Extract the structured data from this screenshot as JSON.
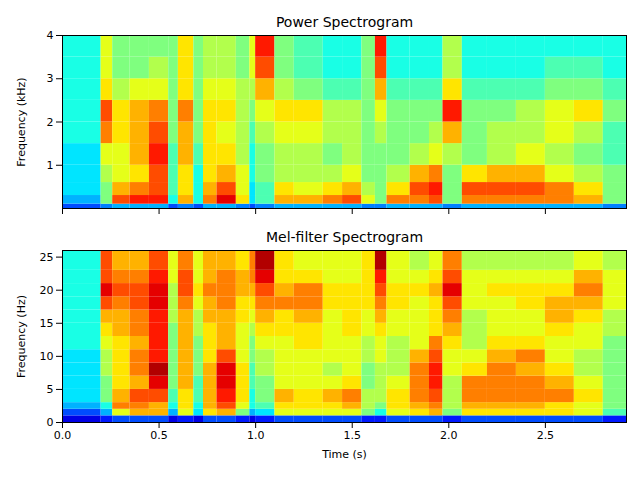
{
  "chart_data": [
    {
      "type": "heatmap",
      "title": "Power Spectrogram",
      "ylabel": "Frequency (kHz)",
      "color": "jet",
      "tick_labels": "y",
      "xlim": [
        0,
        2.92
      ],
      "ylim": [
        0,
        4
      ],
      "xticks": [
        0,
        0.5,
        1,
        1.5,
        2,
        2.5
      ],
      "yticks": [
        1,
        2,
        3,
        4
      ],
      "zlim": [
        0,
        10
      ],
      "xbins": [
        0,
        0.2,
        0.26,
        0.35,
        0.45,
        0.55,
        0.6,
        0.68,
        0.73,
        0.8,
        0.9,
        0.97,
        1.0,
        1.1,
        1.2,
        1.35,
        1.45,
        1.55,
        1.62,
        1.68,
        1.8,
        1.9,
        1.97,
        2.07,
        2.2,
        2.35,
        2.5,
        2.65,
        2.8,
        2.92
      ],
      "ybins": [
        0,
        0.1,
        0.3,
        0.6,
        1,
        1.5,
        2,
        2.5,
        3,
        3.5,
        4
      ],
      "values": [
        [
          2,
          3,
          3.5,
          3.5,
          3.5,
          4,
          4,
          4,
          4,
          4
        ],
        [
          2.5,
          5,
          5,
          5.5,
          6,
          7.5,
          8,
          6.5,
          6,
          6
        ],
        [
          3,
          8,
          7,
          6,
          6,
          6.5,
          6.5,
          5.5,
          5,
          5
        ],
        [
          3,
          8.5,
          7.5,
          6.5,
          7,
          7,
          7,
          6,
          5,
          5
        ],
        [
          3,
          8.5,
          8,
          8,
          8.5,
          8,
          7.5,
          6,
          5.5,
          5
        ],
        [
          2,
          4,
          4.5,
          4.5,
          4.5,
          5,
          5,
          5,
          5,
          5
        ],
        [
          2.5,
          7,
          6.5,
          6.5,
          7,
          7,
          7.5,
          6.5,
          6.5,
          6.5
        ],
        [
          2,
          4,
          4,
          4,
          4.5,
          5,
          5,
          5,
          5,
          5
        ],
        [
          3,
          7.5,
          7,
          6.5,
          6.5,
          6.5,
          6.5,
          6,
          5.5,
          5.5
        ],
        [
          3,
          9,
          8,
          7,
          6.5,
          6,
          6.5,
          6,
          5.5,
          5.5
        ],
        [
          2.5,
          6.5,
          6,
          6,
          5.5,
          5.5,
          5.5,
          5.5,
          5,
          5
        ],
        [
          2,
          3.5,
          3.5,
          4,
          4,
          4.5,
          5,
          5.5,
          6,
          6
        ],
        [
          2.5,
          4.5,
          4.5,
          5,
          5,
          5.5,
          6,
          7,
          8,
          8.5
        ],
        [
          3,
          7,
          6.5,
          5.5,
          5.5,
          6,
          6.5,
          5.5,
          5,
          5
        ],
        [
          3,
          7,
          6,
          5.5,
          5.5,
          6,
          6.5,
          5,
          4.5,
          4.5
        ],
        [
          3,
          7.5,
          6.5,
          5.5,
          5,
          5.5,
          5.5,
          4.5,
          4,
          4
        ],
        [
          3,
          8,
          7,
          6,
          5.5,
          5.5,
          5.5,
          4.5,
          4,
          4
        ],
        [
          2.5,
          6,
          5.5,
          5,
          5,
          5,
          5,
          5,
          5,
          5
        ],
        [
          2.5,
          5,
          5,
          5,
          5,
          5.5,
          6,
          7,
          8,
          8.5
        ],
        [
          3,
          7.5,
          6.5,
          5.5,
          5,
          5,
          5,
          4.5,
          4,
          4
        ],
        [
          3,
          7.5,
          8,
          7,
          5.5,
          5,
          5,
          4.5,
          4,
          4
        ],
        [
          3,
          8,
          8.5,
          7.5,
          6,
          5.5,
          5,
          4.5,
          4,
          4
        ],
        [
          2.5,
          5,
          5,
          5,
          5.5,
          7,
          8.5,
          6.5,
          5.5,
          5.5
        ],
        [
          3,
          7.5,
          8,
          6.5,
          5,
          5,
          5,
          4.5,
          4,
          4
        ],
        [
          3,
          7.5,
          8,
          7,
          5.5,
          5.5,
          5,
          4.5,
          4,
          4
        ],
        [
          3,
          7.5,
          8,
          7,
          6,
          5.5,
          5.5,
          4.5,
          4,
          4
        ],
        [
          3,
          7.5,
          7.5,
          6,
          5.5,
          6,
          6,
          5,
          4.5,
          4
        ],
        [
          3,
          7,
          6.5,
          5.5,
          5,
          5.5,
          6.5,
          5,
          4.5,
          4
        ],
        [
          2.5,
          5,
          5,
          5,
          4.5,
          4.5,
          5,
          4.5,
          4,
          4
        ]
      ]
    },
    {
      "type": "heatmap",
      "title": "Mel-filter Spectrogram",
      "xlabel": "Time (s)",
      "ylabel": "Frequency (Hz)",
      "color": "jet",
      "xlim": [
        0,
        2.92
      ],
      "ylim": [
        0,
        26
      ],
      "xticks": [
        {
          "value": 0,
          "label": "0.0"
        },
        0.5,
        {
          "value": 1,
          "label": "1.0"
        },
        1.5,
        {
          "value": 2,
          "label": "2.0"
        },
        2.5
      ],
      "yticks": [
        0,
        5,
        10,
        15,
        20,
        25
      ],
      "zlim": [
        0,
        10
      ],
      "xbins": [
        0,
        0.2,
        0.26,
        0.35,
        0.45,
        0.55,
        0.6,
        0.68,
        0.73,
        0.8,
        0.9,
        0.97,
        1.0,
        1.1,
        1.2,
        1.35,
        1.45,
        1.55,
        1.62,
        1.68,
        1.8,
        1.9,
        1.97,
        2.07,
        2.2,
        2.35,
        2.5,
        2.65,
        2.8,
        2.92
      ],
      "ybins": [
        0,
        1,
        2,
        3,
        5,
        7,
        9,
        11,
        13,
        15,
        17,
        19,
        21,
        23,
        26
      ],
      "values": [
        [
          1,
          2,
          3,
          3.5,
          3.5,
          3.5,
          3.5,
          4,
          4,
          4,
          4,
          4,
          4,
          4
        ],
        [
          1.5,
          3,
          4,
          5,
          5,
          5.5,
          5.5,
          6,
          6.5,
          7,
          8,
          9,
          8,
          8
        ],
        [
          2,
          6,
          7.5,
          7,
          6.5,
          6.5,
          6.5,
          6.5,
          7,
          7,
          7.5,
          8,
          7.5,
          7
        ],
        [
          2,
          7,
          7.5,
          8,
          7,
          7.5,
          7.5,
          7,
          7.5,
          7.5,
          8,
          8,
          7.5,
          7
        ],
        [
          2,
          7,
          7,
          8,
          9,
          9.5,
          8.5,
          8.5,
          8.5,
          8.5,
          9,
          9,
          8.5,
          8
        ],
        [
          1,
          3,
          4,
          4.5,
          5,
          5,
          5,
          5,
          5,
          5.5,
          5.5,
          5.5,
          6,
          6
        ],
        [
          1.5,
          6,
          6.5,
          6.5,
          7,
          7,
          7,
          7,
          7,
          7,
          7.5,
          8,
          8,
          7.5
        ],
        [
          1,
          3.5,
          4,
          4.5,
          4.5,
          5,
          5,
          5,
          5.5,
          5.5,
          6,
          6.5,
          6,
          6
        ],
        [
          2,
          6.5,
          7,
          7,
          7,
          7,
          6.5,
          6.5,
          6.5,
          7,
          7,
          7.5,
          7,
          7
        ],
        [
          2,
          7,
          8,
          8.5,
          9,
          9,
          8,
          7,
          7,
          7,
          7.5,
          7.5,
          7.5,
          7
        ],
        [
          1.5,
          5,
          6,
          6.5,
          6.5,
          6.5,
          6,
          6,
          6,
          6.5,
          6.5,
          7,
          7,
          6.5
        ],
        [
          1,
          3,
          4,
          4,
          4.5,
          4.5,
          5,
          5,
          5.5,
          6,
          6.5,
          7,
          7.5,
          7.5
        ],
        [
          1.5,
          3.5,
          4.5,
          5,
          5,
          5.5,
          5.5,
          6,
          6.5,
          7,
          7.5,
          8,
          9,
          9.5
        ],
        [
          2,
          6,
          6.5,
          7,
          6,
          6,
          6,
          6,
          6.5,
          6.5,
          7.5,
          7,
          6.5,
          6.5
        ],
        [
          2,
          6,
          6.5,
          6.5,
          6,
          6,
          6,
          6.5,
          6.5,
          7,
          7.5,
          7.5,
          6.5,
          6
        ],
        [
          2,
          6,
          6.5,
          7,
          6,
          5.5,
          6,
          6,
          6,
          6,
          6.5,
          6.5,
          6,
          6
        ],
        [
          2,
          6,
          7,
          7.5,
          6.5,
          6,
          6,
          6,
          6.5,
          6.5,
          6.5,
          6.5,
          6,
          6
        ],
        [
          1.5,
          5,
          5.5,
          5.5,
          5,
          5,
          5.5,
          5.5,
          6,
          6,
          6.5,
          6.5,
          6.5,
          6.5
        ],
        [
          1.5,
          4,
          5,
          5.5,
          5.5,
          5.5,
          6,
          6,
          6.5,
          7,
          7.5,
          8,
          8.5,
          9.5
        ],
        [
          2,
          6,
          6.5,
          6.5,
          6,
          5.5,
          5.5,
          5.5,
          6,
          6,
          6.5,
          6.5,
          6,
          6
        ],
        [
          2,
          6.5,
          7,
          7.5,
          7.5,
          7.5,
          7,
          6,
          6,
          6,
          6,
          6.5,
          6,
          5.5
        ],
        [
          2,
          7,
          7.5,
          8,
          8.5,
          8.5,
          8,
          7.5,
          6.5,
          6.5,
          6.5,
          7,
          6.5,
          6
        ],
        [
          1.5,
          5,
          5.5,
          5.5,
          5.5,
          6,
          6,
          6.5,
          7,
          7.5,
          8,
          9,
          8,
          7.5
        ],
        [
          2,
          6.5,
          7,
          7.5,
          7.5,
          6.5,
          6,
          5.5,
          5.5,
          5.5,
          6,
          6,
          6,
          5.5
        ],
        [
          2,
          6.5,
          7,
          7.5,
          7.5,
          7.5,
          7,
          6.5,
          6,
          6,
          6,
          6.5,
          6,
          5.5
        ],
        [
          2,
          6.5,
          7,
          7.5,
          7.5,
          7,
          7.5,
          6.5,
          6,
          6,
          6.5,
          6.5,
          6,
          5.5
        ],
        [
          2,
          6.5,
          6.5,
          7.5,
          7,
          6.5,
          6,
          6,
          6.5,
          7,
          7,
          6.5,
          6,
          5.5
        ],
        [
          2,
          6,
          6,
          6.5,
          6,
          5.5,
          5.5,
          6,
          6,
          6.5,
          7,
          7.5,
          7,
          6
        ],
        [
          1.5,
          4.5,
          5,
          5,
          5,
          5,
          5,
          5,
          5.5,
          5.5,
          6,
          6,
          6,
          5.5
        ]
      ]
    }
  ]
}
